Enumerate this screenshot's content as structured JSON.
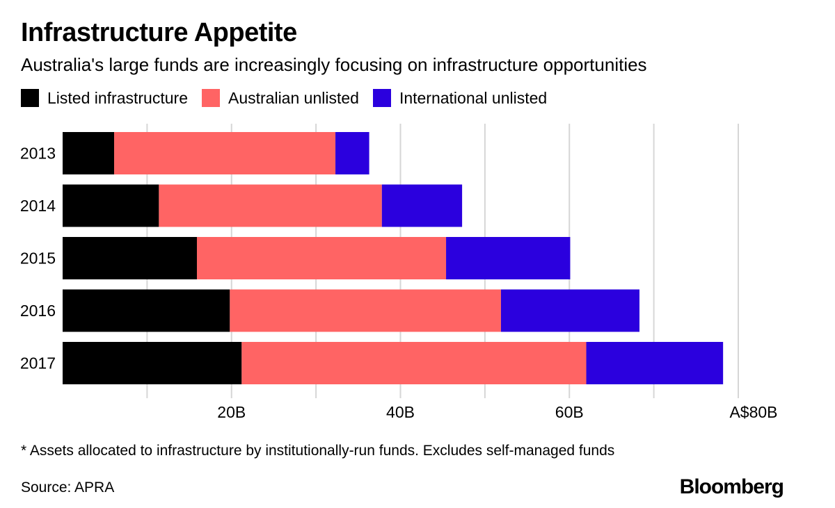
{
  "chart_data": {
    "type": "bar",
    "orientation": "horizontal",
    "stacked": true,
    "title": "Infrastructure Appetite",
    "subtitle": "Australia's large funds are increasingly focusing on infrastructure opportunities",
    "categories": [
      "2013",
      "2014",
      "2015",
      "2016",
      "2017"
    ],
    "series": [
      {
        "name": "Listed infrastructure",
        "color": "#000000",
        "values": [
          6.1,
          11.4,
          15.9,
          19.8,
          21.2
        ]
      },
      {
        "name": "Australian unlisted",
        "color": "#ff6464",
        "values": [
          26.2,
          26.4,
          29.5,
          32.1,
          40.8
        ]
      },
      {
        "name": "International unlisted",
        "color": "#2b00de",
        "values": [
          4.0,
          9.5,
          14.7,
          16.4,
          16.2
        ]
      }
    ],
    "x_ticks": [
      {
        "value": 20,
        "label": "20B"
      },
      {
        "value": 40,
        "label": "40B"
      },
      {
        "value": 60,
        "label": "60B"
      },
      {
        "value": 80,
        "label": "A$80B"
      }
    ],
    "gridlines_at": [
      10,
      20,
      30,
      40,
      50,
      60,
      70,
      80
    ],
    "xlim": [
      0,
      80
    ],
    "xlabel": "",
    "ylabel": "",
    "legend_position": "top-left",
    "grid": true
  },
  "footnote": "* Assets allocated to infrastructure by institutionally-run funds. Excludes self-managed funds",
  "source": "Source: APRA",
  "brand": "Bloomberg"
}
